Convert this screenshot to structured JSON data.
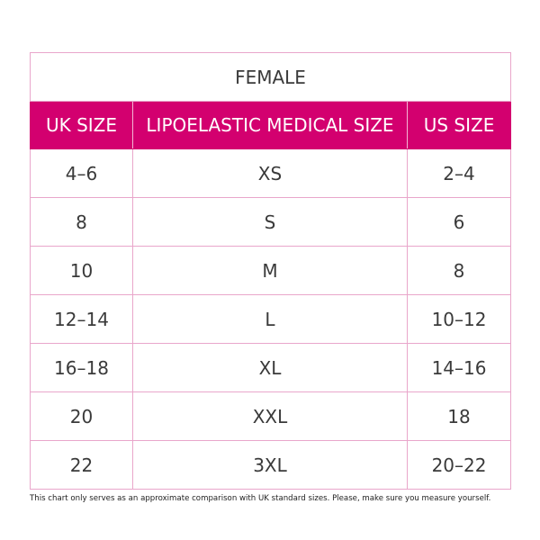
{
  "table": {
    "title": "FEMALE",
    "headers": [
      "UK SIZE",
      "LIPOELASTIC MEDICAL SIZE",
      "US SIZE"
    ],
    "rows": [
      [
        "4–6",
        "XS",
        "2–4"
      ],
      [
        "8",
        "S",
        "6"
      ],
      [
        "10",
        "M",
        "8"
      ],
      [
        "12–14",
        "L",
        "10–12"
      ],
      [
        "16–18",
        "XL",
        "14–16"
      ],
      [
        "20",
        "XXL",
        "18"
      ],
      [
        "22",
        "3XL",
        "20–22"
      ]
    ]
  },
  "footnote": "This chart only serves as an approximate comparison with UK standard sizes. Please, make sure you measure yourself."
}
